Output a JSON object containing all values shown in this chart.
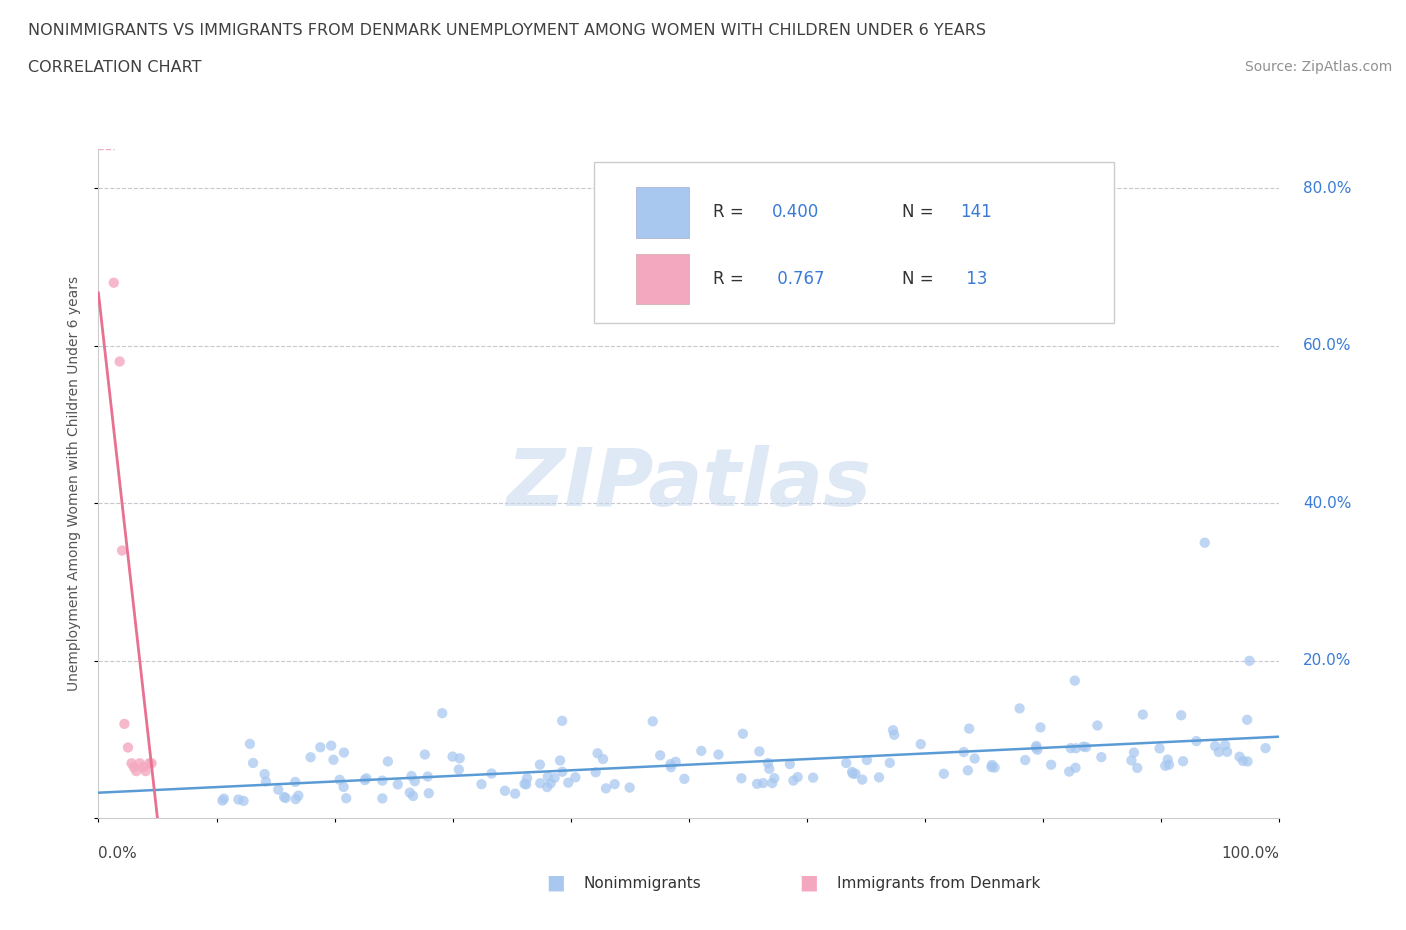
{
  "title_line1": "NONIMMIGRANTS VS IMMIGRANTS FROM DENMARK UNEMPLOYMENT AMONG WOMEN WITH CHILDREN UNDER 6 YEARS",
  "title_line2": "CORRELATION CHART",
  "source_text": "Source: ZipAtlas.com",
  "ylabel": "Unemployment Among Women with Children Under 6 years",
  "watermark": "ZIPatlas",
  "nonimm_color": "#a8c8f0",
  "imm_color": "#f4a8c0",
  "nonimm_line_color": "#5b9bd5",
  "imm_line_color": "#e87090",
  "r_label_color": "#3a7bd5",
  "bg_color": "#ffffff",
  "grid_color": "#c8c8d0",
  "title_color": "#404040",
  "source_color": "#909090",
  "xlim": [
    0.0,
    1.0
  ],
  "ylim": [
    0.0,
    0.85
  ],
  "ytick_positions": [
    0.0,
    0.2,
    0.4,
    0.6,
    0.8
  ],
  "ytick_labels": [
    "",
    "20.0%",
    "40.0%",
    "60.0%",
    "80.0%"
  ]
}
